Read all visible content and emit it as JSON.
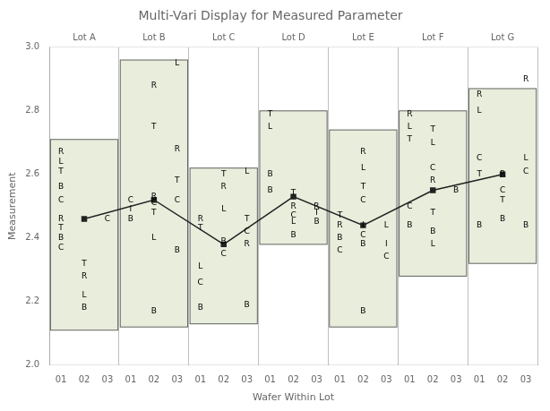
{
  "chart_data": {
    "type": "multivari",
    "title": "Multi-Vari Display for Measured Parameter",
    "x_label": "Wafer Within Lot",
    "y_label": "Measurement",
    "groups": [
      "Lot A",
      "Lot B",
      "Lot C",
      "Lot D",
      "Lot E",
      "Lot F",
      "Lot G"
    ],
    "categories": [
      "01",
      "02",
      "03"
    ],
    "ylim": [
      2.0,
      3.0
    ],
    "yticks": [
      {
        "value": 2.0,
        "label": "2.0"
      },
      2.2,
      2.4,
      2.6,
      2.8,
      {
        "value": 3.0,
        "label": "3.0"
      }
    ],
    "grid": false,
    "boxes": {
      "low": [
        2.11,
        2.12,
        2.13,
        2.38,
        2.12,
        2.28,
        2.32
      ],
      "high": [
        2.71,
        2.96,
        2.62,
        2.8,
        2.74,
        2.8,
        2.87
      ],
      "color": "#e8eddc"
    },
    "means": {
      "values": [
        2.46,
        2.52,
        2.38,
        2.53,
        2.44,
        2.55,
        2.6
      ],
      "color": "#222222",
      "marker": "square"
    },
    "points": [
      {
        "lot": "Lot A",
        "wafer": "01",
        "y": 2.67,
        "label": "R"
      },
      {
        "lot": "Lot A",
        "wafer": "01",
        "y": 2.64,
        "label": "L"
      },
      {
        "lot": "Lot A",
        "wafer": "01",
        "y": 2.61,
        "label": "T"
      },
      {
        "lot": "Lot A",
        "wafer": "01",
        "y": 2.56,
        "label": "B"
      },
      {
        "lot": "Lot A",
        "wafer": "01",
        "y": 2.52,
        "label": "C"
      },
      {
        "lot": "Lot A",
        "wafer": "01",
        "y": 2.46,
        "label": "R"
      },
      {
        "lot": "Lot A",
        "wafer": "01",
        "y": 2.43,
        "label": "T"
      },
      {
        "lot": "Lot A",
        "wafer": "01",
        "y": 2.4,
        "label": "B"
      },
      {
        "lot": "Lot A",
        "wafer": "01",
        "y": 2.37,
        "label": "C"
      },
      {
        "lot": "Lot A",
        "wafer": "03",
        "y": 2.46,
        "label": "C"
      },
      {
        "lot": "Lot A",
        "wafer": "02",
        "y": 2.32,
        "label": "T"
      },
      {
        "lot": "Lot A",
        "wafer": "02",
        "y": 2.28,
        "label": "R"
      },
      {
        "lot": "Lot A",
        "wafer": "02",
        "y": 2.22,
        "label": "L"
      },
      {
        "lot": "Lot A",
        "wafer": "02",
        "y": 2.18,
        "label": "B"
      },
      {
        "lot": "Lot B",
        "wafer": "01",
        "y": 2.52,
        "label": "C"
      },
      {
        "lot": "Lot B",
        "wafer": "01",
        "y": 2.49,
        "label": "I"
      },
      {
        "lot": "Lot B",
        "wafer": "01",
        "y": 2.46,
        "label": "B"
      },
      {
        "lot": "Lot B",
        "wafer": "02",
        "y": 2.88,
        "label": "R"
      },
      {
        "lot": "Lot B",
        "wafer": "02",
        "y": 2.75,
        "label": "T"
      },
      {
        "lot": "Lot B",
        "wafer": "02",
        "y": 2.53,
        "label": "R"
      },
      {
        "lot": "Lot B",
        "wafer": "02",
        "y": 2.51,
        "label": "C"
      },
      {
        "lot": "Lot B",
        "wafer": "02",
        "y": 2.48,
        "label": "T"
      },
      {
        "lot": "Lot B",
        "wafer": "02",
        "y": 2.4,
        "label": "L"
      },
      {
        "lot": "Lot B",
        "wafer": "03",
        "y": 2.95,
        "label": "L"
      },
      {
        "lot": "Lot B",
        "wafer": "03",
        "y": 2.68,
        "label": "R"
      },
      {
        "lot": "Lot B",
        "wafer": "03",
        "y": 2.58,
        "label": "T"
      },
      {
        "lot": "Lot B",
        "wafer": "03",
        "y": 2.52,
        "label": "C"
      },
      {
        "lot": "Lot B",
        "wafer": "03",
        "y": 2.36,
        "label": "B"
      },
      {
        "lot": "Lot B",
        "wafer": "02",
        "y": 2.17,
        "label": "B"
      },
      {
        "lot": "Lot C",
        "wafer": "01",
        "y": 2.46,
        "label": "R"
      },
      {
        "lot": "Lot C",
        "wafer": "01",
        "y": 2.43,
        "label": "T"
      },
      {
        "lot": "Lot C",
        "wafer": "01",
        "y": 2.31,
        "label": "L"
      },
      {
        "lot": "Lot C",
        "wafer": "01",
        "y": 2.26,
        "label": "C"
      },
      {
        "lot": "Lot C",
        "wafer": "01",
        "y": 2.18,
        "label": "B"
      },
      {
        "lot": "Lot C",
        "wafer": "02",
        "y": 2.6,
        "label": "T"
      },
      {
        "lot": "Lot C",
        "wafer": "02",
        "y": 2.56,
        "label": "R"
      },
      {
        "lot": "Lot C",
        "wafer": "02",
        "y": 2.49,
        "label": "L"
      },
      {
        "lot": "Lot C",
        "wafer": "02",
        "y": 2.39,
        "label": "B"
      },
      {
        "lot": "Lot C",
        "wafer": "02",
        "y": 2.35,
        "label": "C"
      },
      {
        "lot": "Lot C",
        "wafer": "03",
        "y": 2.61,
        "label": "L"
      },
      {
        "lot": "Lot C",
        "wafer": "03",
        "y": 2.46,
        "label": "T"
      },
      {
        "lot": "Lot C",
        "wafer": "03",
        "y": 2.42,
        "label": "C"
      },
      {
        "lot": "Lot C",
        "wafer": "03",
        "y": 2.38,
        "label": "R"
      },
      {
        "lot": "Lot C",
        "wafer": "03",
        "y": 2.19,
        "label": "B"
      },
      {
        "lot": "Lot D",
        "wafer": "01",
        "y": 2.79,
        "label": "T"
      },
      {
        "lot": "Lot D",
        "wafer": "01",
        "y": 2.75,
        "label": "L"
      },
      {
        "lot": "Lot D",
        "wafer": "01",
        "y": 2.6,
        "label": "B"
      },
      {
        "lot": "Lot D",
        "wafer": "01",
        "y": 2.55,
        "label": "B"
      },
      {
        "lot": "Lot D",
        "wafer": "02",
        "y": 2.54,
        "label": "T"
      },
      {
        "lot": "Lot D",
        "wafer": "02",
        "y": 2.5,
        "label": "R"
      },
      {
        "lot": "Lot D",
        "wafer": "02",
        "y": 2.47,
        "label": "C"
      },
      {
        "lot": "Lot D",
        "wafer": "02",
        "y": 2.45,
        "label": "L"
      },
      {
        "lot": "Lot D",
        "wafer": "02",
        "y": 2.41,
        "label": "B"
      },
      {
        "lot": "Lot D",
        "wafer": "03",
        "y": 2.5,
        "label": "R"
      },
      {
        "lot": "Lot D",
        "wafer": "03",
        "y": 2.48,
        "label": "T"
      },
      {
        "lot": "Lot D",
        "wafer": "03",
        "y": 2.45,
        "label": "B"
      },
      {
        "lot": "Lot E",
        "wafer": "01",
        "y": 2.47,
        "label": "T"
      },
      {
        "lot": "Lot E",
        "wafer": "01",
        "y": 2.44,
        "label": "R"
      },
      {
        "lot": "Lot E",
        "wafer": "01",
        "y": 2.4,
        "label": "B"
      },
      {
        "lot": "Lot E",
        "wafer": "01",
        "y": 2.36,
        "label": "C"
      },
      {
        "lot": "Lot E",
        "wafer": "02",
        "y": 2.67,
        "label": "R"
      },
      {
        "lot": "Lot E",
        "wafer": "02",
        "y": 2.62,
        "label": "L"
      },
      {
        "lot": "Lot E",
        "wafer": "02",
        "y": 2.56,
        "label": "T"
      },
      {
        "lot": "Lot E",
        "wafer": "02",
        "y": 2.52,
        "label": "C"
      },
      {
        "lot": "Lot E",
        "wafer": "02",
        "y": 2.44,
        "label": "I"
      },
      {
        "lot": "Lot E",
        "wafer": "02",
        "y": 2.41,
        "label": "C"
      },
      {
        "lot": "Lot E",
        "wafer": "02",
        "y": 2.38,
        "label": "B"
      },
      {
        "lot": "Lot E",
        "wafer": "03",
        "y": 2.44,
        "label": "L"
      },
      {
        "lot": "Lot E",
        "wafer": "03",
        "y": 2.38,
        "label": "I"
      },
      {
        "lot": "Lot E",
        "wafer": "03",
        "y": 2.34,
        "label": "C"
      },
      {
        "lot": "Lot E",
        "wafer": "02",
        "y": 2.17,
        "label": "B"
      },
      {
        "lot": "Lot F",
        "wafer": "01",
        "y": 2.79,
        "label": "R"
      },
      {
        "lot": "Lot F",
        "wafer": "01",
        "y": 2.75,
        "label": "L"
      },
      {
        "lot": "Lot F",
        "wafer": "01",
        "y": 2.71,
        "label": "T"
      },
      {
        "lot": "Lot F",
        "wafer": "01",
        "y": 2.5,
        "label": "C"
      },
      {
        "lot": "Lot F",
        "wafer": "01",
        "y": 2.44,
        "label": "B"
      },
      {
        "lot": "Lot F",
        "wafer": "02",
        "y": 2.74,
        "label": "T"
      },
      {
        "lot": "Lot F",
        "wafer": "02",
        "y": 2.7,
        "label": "L"
      },
      {
        "lot": "Lot F",
        "wafer": "02",
        "y": 2.62,
        "label": "C"
      },
      {
        "lot": "Lot F",
        "wafer": "02",
        "y": 2.58,
        "label": "R"
      },
      {
        "lot": "Lot F",
        "wafer": "02",
        "y": 2.48,
        "label": "T"
      },
      {
        "lot": "Lot F",
        "wafer": "02",
        "y": 2.42,
        "label": "B"
      },
      {
        "lot": "Lot F",
        "wafer": "02",
        "y": 2.38,
        "label": "L"
      },
      {
        "lot": "Lot F",
        "wafer": "03",
        "y": 2.55,
        "label": "B"
      },
      {
        "lot": "Lot G",
        "wafer": "01",
        "y": 2.85,
        "label": "R"
      },
      {
        "lot": "Lot G",
        "wafer": "01",
        "y": 2.8,
        "label": "L"
      },
      {
        "lot": "Lot G",
        "wafer": "01",
        "y": 2.65,
        "label": "C"
      },
      {
        "lot": "Lot G",
        "wafer": "01",
        "y": 2.6,
        "label": "T"
      },
      {
        "lot": "Lot G",
        "wafer": "01",
        "y": 2.44,
        "label": "B"
      },
      {
        "lot": "Lot G",
        "wafer": "02",
        "y": 2.6,
        "label": "R"
      },
      {
        "lot": "Lot G",
        "wafer": "02",
        "y": 2.55,
        "label": "C"
      },
      {
        "lot": "Lot G",
        "wafer": "02",
        "y": 2.52,
        "label": "T"
      },
      {
        "lot": "Lot G",
        "wafer": "02",
        "y": 2.46,
        "label": "B"
      },
      {
        "lot": "Lot G",
        "wafer": "03",
        "y": 2.9,
        "label": "R"
      },
      {
        "lot": "Lot G",
        "wafer": "03",
        "y": 2.65,
        "label": "L"
      },
      {
        "lot": "Lot G",
        "wafer": "03",
        "y": 2.61,
        "label": "C"
      },
      {
        "lot": "Lot G",
        "wafer": "03",
        "y": 2.44,
        "label": "B"
      }
    ]
  }
}
